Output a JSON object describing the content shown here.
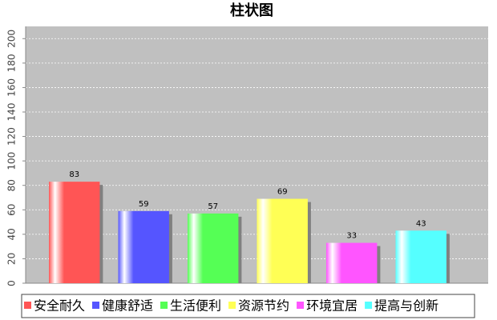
{
  "chart_data": {
    "type": "bar",
    "title": "柱状图",
    "categories": [
      null
    ],
    "series": [
      {
        "name": "安全耐久",
        "color": "#ff5555",
        "values": [
          83
        ]
      },
      {
        "name": "健康舒适",
        "color": "#5555ff",
        "values": [
          59
        ]
      },
      {
        "name": "生活便利",
        "color": "#55ff55",
        "values": [
          57
        ]
      },
      {
        "name": "资源节约",
        "color": "#ffff55",
        "values": [
          69
        ]
      },
      {
        "name": "环境宜居",
        "color": "#ff55ff",
        "values": [
          33
        ]
      },
      {
        "name": "提高与创新",
        "color": "#55ffff",
        "values": [
          43
        ]
      }
    ],
    "ylim": [
      0,
      210
    ],
    "yticks": [
      0,
      20,
      40,
      60,
      80,
      100,
      120,
      140,
      160,
      180,
      200
    ],
    "grid": true,
    "legend": "bottom"
  }
}
